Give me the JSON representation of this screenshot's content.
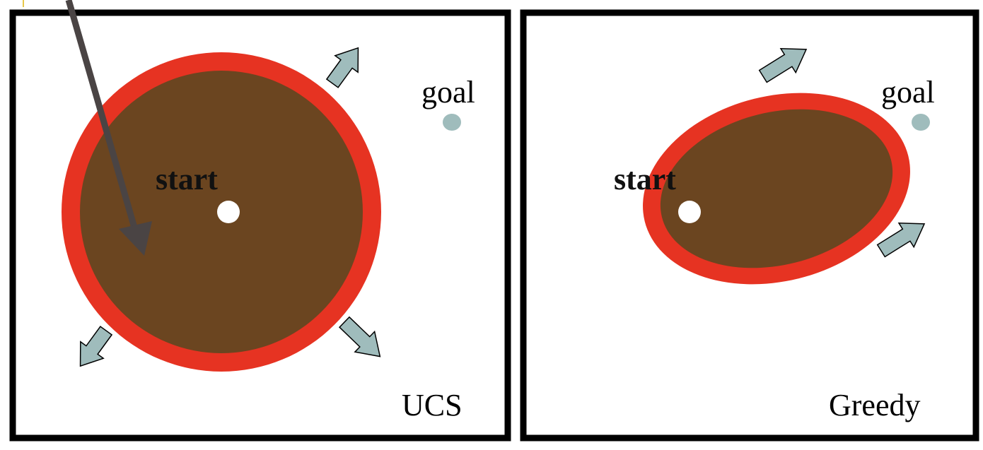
{
  "colors": {
    "frame": "#000000",
    "frontier": "#e63322",
    "explored": "#6b4520",
    "start_dot": "#ffffff",
    "goal_dot": "#9fbcbc",
    "arrow_fill": "#9fbcbc",
    "arrow_stroke": "#000000",
    "pointer": "#4a4444",
    "accent": "#e8c84a"
  },
  "panels": [
    {
      "id": "ucs",
      "caption": "UCS",
      "start_label": "start",
      "goal_label": "goal"
    },
    {
      "id": "greedy",
      "caption": "Greedy",
      "start_label": "start",
      "goal_label": "goal"
    }
  ]
}
